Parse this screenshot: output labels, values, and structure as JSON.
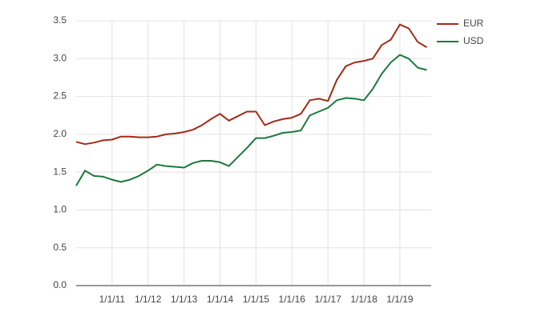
{
  "chart_data": {
    "type": "line",
    "x": [
      "2010-01-01",
      "2010-04-01",
      "2010-07-01",
      "2010-10-01",
      "2011-01-01",
      "2011-04-01",
      "2011-07-01",
      "2011-10-01",
      "2012-01-01",
      "2012-04-01",
      "2012-07-01",
      "2012-10-01",
      "2013-01-01",
      "2013-04-01",
      "2013-07-01",
      "2013-10-01",
      "2014-01-01",
      "2014-04-01",
      "2014-07-01",
      "2014-10-01",
      "2015-01-01",
      "2015-04-01",
      "2015-07-01",
      "2015-10-01",
      "2016-01-01",
      "2016-04-01",
      "2016-07-01",
      "2016-10-01",
      "2017-01-01",
      "2017-04-01",
      "2017-07-01",
      "2017-10-01",
      "2018-01-01",
      "2018-04-01",
      "2018-07-01",
      "2018-10-01",
      "2019-01-01",
      "2019-04-01",
      "2019-07-01",
      "2019-10-01"
    ],
    "series": [
      {
        "name": "EUR",
        "color": "#a52a16",
        "values": [
          1.9,
          1.87,
          1.89,
          1.92,
          1.93,
          1.97,
          1.97,
          1.96,
          1.96,
          1.97,
          2.0,
          2.01,
          2.03,
          2.06,
          2.12,
          2.2,
          2.27,
          2.18,
          2.24,
          2.3,
          2.3,
          2.12,
          2.17,
          2.2,
          2.22,
          2.27,
          2.45,
          2.47,
          2.44,
          2.72,
          2.9,
          2.95,
          2.97,
          3.0,
          3.18,
          3.25,
          3.45,
          3.4,
          3.22,
          3.15
        ]
      },
      {
        "name": "USD",
        "color": "#1a7a3c",
        "values": [
          1.32,
          1.52,
          1.45,
          1.44,
          1.4,
          1.37,
          1.4,
          1.45,
          1.52,
          1.6,
          1.58,
          1.57,
          1.56,
          1.62,
          1.65,
          1.65,
          1.63,
          1.58,
          1.7,
          1.82,
          1.95,
          1.95,
          1.98,
          2.02,
          2.03,
          2.05,
          2.25,
          2.3,
          2.35,
          2.45,
          2.48,
          2.47,
          2.45,
          2.6,
          2.8,
          2.95,
          3.05,
          3.0,
          2.88,
          2.85
        ]
      }
    ],
    "xlim": [
      "2010-01-01",
      "2019-11-15"
    ],
    "xticks": [
      {
        "value": "2011-01-01",
        "label": "1/1/11"
      },
      {
        "value": "2012-01-01",
        "label": "1/1/12"
      },
      {
        "value": "2013-01-01",
        "label": "1/1/13"
      },
      {
        "value": "2014-01-01",
        "label": "1/1/14"
      },
      {
        "value": "2015-01-01",
        "label": "1/1/15"
      },
      {
        "value": "2016-01-01",
        "label": "1/1/16"
      },
      {
        "value": "2017-01-01",
        "label": "1/1/17"
      },
      {
        "value": "2018-01-01",
        "label": "1/1/18"
      },
      {
        "value": "2019-01-01",
        "label": "1/1/19"
      }
    ],
    "ylim": [
      0,
      3.5
    ],
    "yticks": [
      {
        "value": 0,
        "label": "0.0"
      },
      0.5,
      {
        "value": 1,
        "label": "1.0"
      },
      1.5,
      {
        "value": 2,
        "label": "2.0"
      },
      2.5,
      {
        "value": 3,
        "label": "3.0"
      },
      3.5
    ],
    "grid": true,
    "legend": "top-right"
  }
}
